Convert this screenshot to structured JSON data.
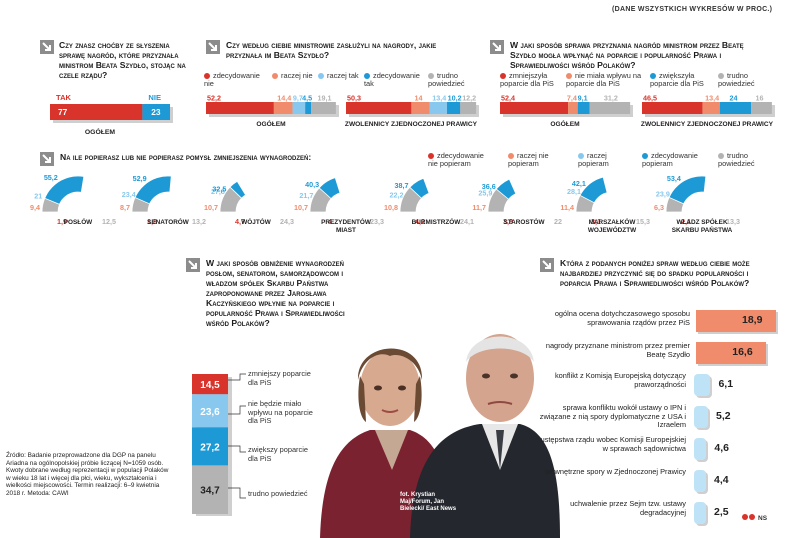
{
  "header_note": "(DANE WSZYSTKICH WYKRESÓW W PROC.)",
  "colors": {
    "red": "#d9342b",
    "salmon": "#f08c6c",
    "lightblue": "#88c8ee",
    "blue": "#1d9ad6",
    "gray": "#b3b3b3",
    "shadow": "#cfcfcf"
  },
  "q1": {
    "title": "Czy znasz choćby ze słyszenia sprawę nagród, które przyznała ministrom Beata Szydło, stojąc na czele rządu?",
    "yes_label": "TAK",
    "no_label": "NIE",
    "row_label": "OGÓŁEM"
  },
  "q2": {
    "title": "Czy według ciebie ministrowie zasłużyli na nagrody, jakie przyznała im Beata Szydło?",
    "legend": [
      "zdecydowanie nie",
      "raczej nie",
      "raczej tak",
      "zdecydowanie tak",
      "trudno powiedzieć"
    ]
  },
  "q3": {
    "title": "W jaki sposób sprawa przyznania nagród ministrom przez Beatę Szydło mogła wpłynąć na poparcie i popularność Prawa i Sprawiedliwości wśród Polaków?",
    "legend": [
      "zmniejszyła poparcie dla PiS",
      "nie miała wpływu na poparcie dla PiS",
      "zwiększyła poparcie dla PiS",
      "trudno powiedzieć"
    ]
  },
  "q4": {
    "title": "Na ile popierasz lub nie popierasz pomysł zmniejszenia wynagrodzeń:",
    "legend": [
      "zdecydowanie nie popieram",
      "raczej nie popieram",
      "raczej popieram",
      "zdecydowanie popieram",
      "trudno powiedzieć"
    ]
  },
  "q5": {
    "title": "W jaki sposób obniżenie wynagrodzeń posłom, senatorom, samorządowcom i władzom spółek Skarbu Państwa zaproponowane przez Jarosława Kaczyńskiego wpłynie na poparcie i popularność Prawa i Sprawiedliwości wśród Polaków?",
    "labels": [
      "zmniejszy poparcie dla PiS",
      "nie będzie miało wpływu na poparcie dla PiS",
      "zwiększy poparcie dla PiS",
      "trudno powiedzieć"
    ]
  },
  "q6": {
    "title": "Która z podanych poniżej spraw według ciebie może najbardziej przyczynić się do spadku popularności i poparcia Prawa i Sprawiedliwości wśród Polaków?"
  },
  "source": "Źródło: Badanie przeprowadzone dla DGP na panelu Ariadna na ogólnopolskiej próbie liczącej N=1059 osób. Kwoty dobrane według reprezentacji w populacji Polaków w wieku 18 lat i więcej dla płci, wieku, wykształcenia i wielkości miejscowości. Termin realizacji: 6–9 kwietnia 2018 r. Metoda: CAWI",
  "photo_credit": "fot. Krystian Maj/Forum, Jan Bielecki/ East News",
  "signature": "NS",
  "chart_data": [
    {
      "id": "q1",
      "type": "bar",
      "orientation": "horizontal-stacked",
      "categories": [
        "OGÓŁEM"
      ],
      "series": [
        {
          "name": "TAK",
          "values": [
            77
          ]
        },
        {
          "name": "NIE",
          "values": [
            23
          ]
        }
      ]
    },
    {
      "id": "q2",
      "type": "bar",
      "orientation": "horizontal-stacked",
      "categories": [
        "OGÓŁEM",
        "ZWOLENNICY ZJEDNOCZONEJ PRAWICY"
      ],
      "series": [
        {
          "name": "zdecydowanie nie",
          "values": [
            52.2,
            50.3
          ]
        },
        {
          "name": "raczej nie",
          "values": [
            14.4,
            14.0
          ]
        },
        {
          "name": "raczej tak",
          "values": [
            9.7,
            13.4
          ]
        },
        {
          "name": "zdecydowanie tak",
          "values": [
            4.5,
            10.2
          ]
        },
        {
          "name": "trudno powiedzieć",
          "values": [
            19.1,
            12.2
          ]
        }
      ]
    },
    {
      "id": "q3",
      "type": "bar",
      "orientation": "horizontal-stacked",
      "categories": [
        "OGÓŁEM",
        "ZWOLENNICY ZJEDNOCZONEJ PRAWICY"
      ],
      "series": [
        {
          "name": "zmniejszyła poparcie dla PiS",
          "values": [
            52.4,
            46.5
          ]
        },
        {
          "name": "nie miała wpływu na poparcie dla PiS",
          "values": [
            7.4,
            13.4
          ]
        },
        {
          "name": "zwiększyła poparcie dla PiS",
          "values": [
            9.1,
            24.0
          ]
        },
        {
          "name": "trudno powiedzieć",
          "values": [
            31.2,
            16.0
          ]
        }
      ]
    },
    {
      "id": "q4",
      "type": "pie",
      "shape": "half-donut",
      "categories": [
        "POSŁÓW",
        "SENATORÓW",
        "WÓJTÓW",
        "PREZYDENTÓW MIAST",
        "BURMISTRZÓW",
        "STAROSTÓW",
        "MARSZAŁKÓW WOJEWÓDZTW",
        "WŁADZ SPÓŁEK SKARBU PAŃSTWA"
      ],
      "series": [
        {
          "name": "zdecydowanie nie popieram",
          "values": [
            1.9,
            1.8,
            4.7,
            4.0,
            4.2,
            3.8,
            3.1,
            2.1
          ]
        },
        {
          "name": "raczej nie popieram",
          "values": [
            9.4,
            8.7,
            10.7,
            10.7,
            10.8,
            11.7,
            11.4,
            6.3
          ]
        },
        {
          "name": "raczej popieram",
          "values": [
            21.0,
            23.4,
            27.8,
            21.7,
            22.2,
            25.9,
            28.1,
            23.9
          ]
        },
        {
          "name": "zdecydowanie popieram",
          "values": [
            55.2,
            52.9,
            32.5,
            40.3,
            38.7,
            36.6,
            42.1,
            53.4
          ]
        },
        {
          "name": "trudno powiedzieć",
          "values": [
            12.5,
            13.2,
            24.3,
            23.3,
            24.1,
            22.0,
            15.3,
            13.3
          ]
        }
      ]
    },
    {
      "id": "q5",
      "type": "bar",
      "orientation": "vertical-stacked",
      "categories": [
        "zmniejszy poparcie dla PiS",
        "nie będzie miało wpływu na poparcie dla PiS",
        "zwiększy poparcie dla PiS",
        "trudno powiedzieć"
      ],
      "values": [
        14.5,
        23.6,
        27.2,
        34.7
      ]
    },
    {
      "id": "q6",
      "type": "bar",
      "orientation": "horizontal",
      "categories": [
        "ogólna ocena dotychczasowego sposobu sprawowania rządów przez PiS",
        "nagrody przyznane ministrom przez premier Beatę Szydło",
        "konflikt z Komisją Europejską dotyczący praworządności",
        "sprawa konfliktu wokół ustawy o IPN i związane z nią spory dyplomatyczne z USA i Izraelem",
        "ustępstwa rządu wobec Komisji Europejskiej w sprawach sądownictwa",
        "wewnętrzne spory w Zjednoczonej Prawicy",
        "uchwalenie przez Sejm tzw. ustawy degradacyjnej"
      ],
      "values": [
        18.9,
        16.6,
        6.1,
        5.2,
        4.6,
        4.4,
        2.5
      ]
    }
  ]
}
